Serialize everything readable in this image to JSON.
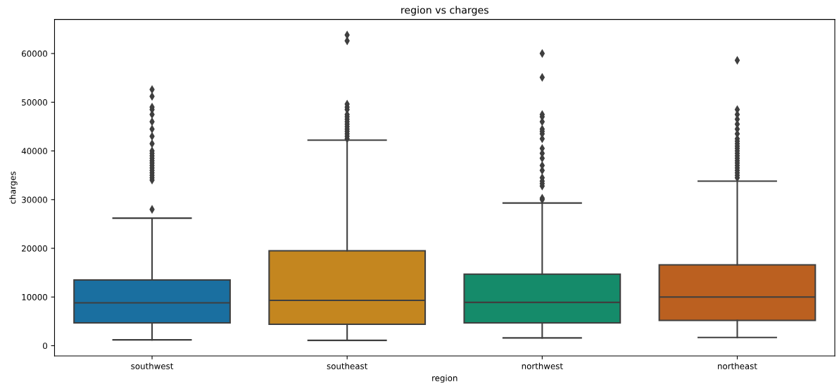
{
  "chart_data": {
    "type": "box",
    "title": "region vs charges",
    "xlabel": "region",
    "ylabel": "charges",
    "categories": [
      "southwest",
      "southeast",
      "northwest",
      "northeast"
    ],
    "colors": [
      "#1a6fa0",
      "#c4861f",
      "#158b6a",
      "#bb6020"
    ],
    "ylim": [
      -2100,
      67000
    ],
    "yticks": [
      0,
      10000,
      20000,
      30000,
      40000,
      50000,
      60000
    ],
    "grid": false,
    "marker": "diamond",
    "boxes": [
      {
        "low": 1200,
        "q1": 4700,
        "median": 8800,
        "q3": 13500,
        "high": 26200,
        "outliers": [
          28000,
          34000,
          34500,
          35000,
          35500,
          36000,
          36500,
          37000,
          37500,
          38000,
          38500,
          39000,
          39500,
          40000,
          41500,
          43000,
          44500,
          46000,
          47500,
          48500,
          49000,
          51200,
          52600
        ]
      },
      {
        "low": 1100,
        "q1": 4400,
        "median": 9300,
        "q3": 19500,
        "high": 42200,
        "outliers": [
          42500,
          43000,
          43500,
          44000,
          44500,
          45000,
          45500,
          46000,
          46500,
          47000,
          47500,
          48500,
          49000,
          49600,
          62600,
          63800
        ]
      },
      {
        "low": 1600,
        "q1": 4700,
        "median": 8900,
        "q3": 14700,
        "high": 29300,
        "outliers": [
          30000,
          30300,
          32800,
          33300,
          33800,
          34500,
          36000,
          37000,
          38500,
          39500,
          40500,
          42500,
          43500,
          44000,
          44500,
          46000,
          47000,
          47500,
          55100,
          60000
        ]
      },
      {
        "low": 1700,
        "q1": 5200,
        "median": 10000,
        "q3": 16600,
        "high": 33800,
        "outliers": [
          34500,
          35000,
          35500,
          36000,
          36500,
          37000,
          37500,
          38000,
          38500,
          39000,
          39500,
          40000,
          40500,
          41000,
          41500,
          42000,
          42500,
          43500,
          44500,
          45500,
          46500,
          47500,
          48500,
          58600
        ]
      }
    ]
  }
}
